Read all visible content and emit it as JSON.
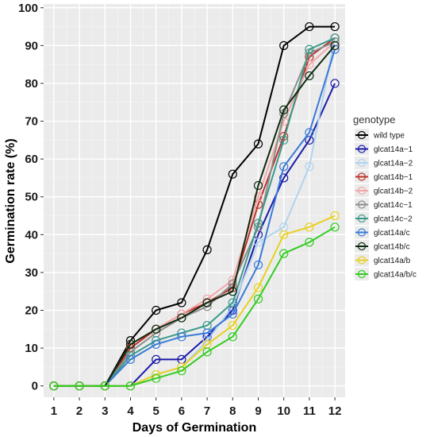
{
  "chart_data": {
    "type": "line",
    "xlabel": "Days of Germination",
    "ylabel": "Germination rate (%)",
    "x": [
      1,
      2,
      3,
      4,
      5,
      6,
      7,
      8,
      9,
      10,
      11,
      12
    ],
    "xlim": [
      0.6,
      12.4
    ],
    "ylim": [
      -3,
      101
    ],
    "yticks": [
      0,
      10,
      20,
      30,
      40,
      50,
      60,
      70,
      80,
      90,
      100
    ],
    "grid": true,
    "legend": {
      "title": "genotype",
      "position": "right"
    },
    "series": [
      {
        "name": "wild type",
        "color": "#000000",
        "values": [
          0,
          0,
          0,
          12,
          20,
          22,
          36,
          56,
          64,
          90,
          95,
          95
        ]
      },
      {
        "name": "glcat14a−1",
        "color": "#1a1aa8",
        "values": [
          0,
          0,
          0,
          0,
          7,
          7,
          13,
          20,
          40,
          55,
          65,
          80
        ]
      },
      {
        "name": "glcat14a−2",
        "color": "#b0d4ee",
        "values": [
          0,
          0,
          0,
          0,
          3,
          5,
          12,
          21,
          38,
          42,
          58,
          92
        ]
      },
      {
        "name": "glcat14b−1",
        "color": "#c0302a",
        "values": [
          0,
          0,
          0,
          10,
          15,
          19,
          22,
          26,
          48,
          66,
          87,
          92
        ]
      },
      {
        "name": "glcat14b−2",
        "color": "#f0a8a8",
        "values": [
          0,
          0,
          0,
          11,
          15,
          19,
          23,
          28,
          50,
          70,
          85,
          91
        ]
      },
      {
        "name": "glcat14c−1",
        "color": "#8c8c8c",
        "values": [
          0,
          0,
          0,
          9,
          14,
          18,
          21,
          27,
          42,
          72,
          88,
          91
        ]
      },
      {
        "name": "glcat14c−2",
        "color": "#3a9a8a",
        "values": [
          0,
          0,
          0,
          8,
          12,
          14,
          16,
          22,
          43,
          65,
          89,
          92
        ]
      },
      {
        "name": "glcat14a/c",
        "color": "#3a7ad8",
        "values": [
          0,
          0,
          0,
          7,
          11,
          13,
          14,
          19,
          32,
          58,
          67,
          89
        ]
      },
      {
        "name": "glcat14b/c",
        "color": "#0e2a0e",
        "values": [
          0,
          0,
          0,
          11,
          15,
          18,
          22,
          25,
          53,
          73,
          82,
          90
        ]
      },
      {
        "name": "glcat14a/b",
        "color": "#e8d020",
        "values": [
          0,
          0,
          0,
          0,
          3,
          5,
          11,
          16,
          26,
          40,
          42,
          45
        ]
      },
      {
        "name": "glcat14a/b/c",
        "color": "#33cc22",
        "values": [
          0,
          0,
          0,
          0,
          2,
          4,
          9,
          13,
          23,
          35,
          38,
          42
        ]
      }
    ]
  }
}
